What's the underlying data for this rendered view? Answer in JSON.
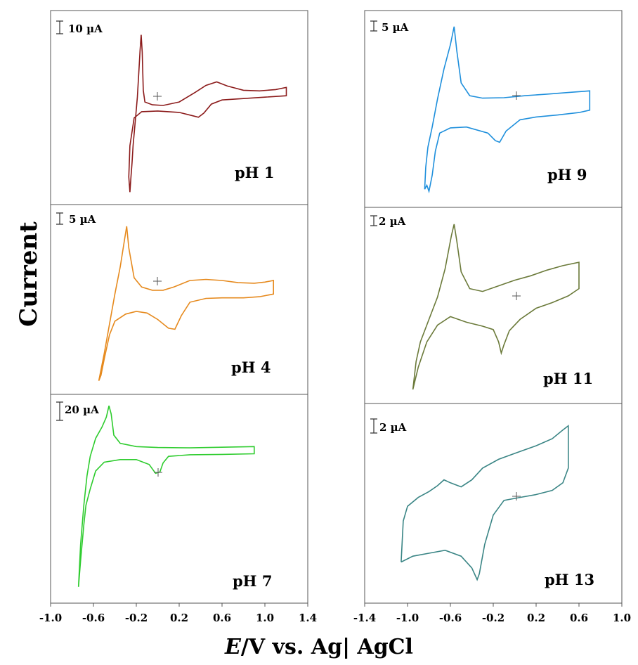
{
  "figure": {
    "ylabel": "Current",
    "xlabel_prefix": "E",
    "xlabel_rest": "/V vs. Ag| AgCl"
  },
  "chart_data": [
    {
      "type": "line",
      "column": "left",
      "label": "pH  1",
      "scale": "10 µA",
      "color": "#8b1a1a",
      "xlim": [
        -1.0,
        1.4
      ],
      "xticks": [
        "-1.0",
        "-0.6",
        "-0.2",
        "0.2",
        "0.6",
        "1.0",
        "1.4"
      ],
      "points": [
        [
          -0.23,
          0.35
        ],
        [
          -0.21,
          0.7
        ],
        [
          -0.19,
          1.05
        ],
        [
          -0.175,
          1.45
        ],
        [
          -0.165,
          1.72
        ],
        [
          -0.155,
          1.95
        ],
        [
          -0.145,
          1.7
        ],
        [
          -0.135,
          1.15
        ],
        [
          -0.12,
          0.98
        ],
        [
          -0.05,
          0.94
        ],
        [
          0.05,
          0.93
        ],
        [
          0.2,
          0.98
        ],
        [
          0.35,
          1.12
        ],
        [
          0.45,
          1.22
        ],
        [
          0.55,
          1.27
        ],
        [
          0.65,
          1.21
        ],
        [
          0.8,
          1.15
        ],
        [
          0.95,
          1.14
        ],
        [
          1.1,
          1.16
        ],
        [
          1.2,
          1.19
        ],
        [
          1.2,
          1.07
        ],
        [
          1.0,
          1.05
        ],
        [
          0.8,
          1.03
        ],
        [
          0.6,
          1.01
        ],
        [
          0.5,
          0.95
        ],
        [
          0.43,
          0.82
        ],
        [
          0.38,
          0.76
        ],
        [
          0.33,
          0.78
        ],
        [
          0.2,
          0.83
        ],
        [
          0.0,
          0.85
        ],
        [
          -0.15,
          0.84
        ],
        [
          -0.22,
          0.75
        ],
        [
          -0.26,
          0.35
        ],
        [
          -0.27,
          -0.1
        ],
        [
          -0.26,
          -0.32
        ],
        [
          -0.25,
          -0.1
        ],
        [
          -0.24,
          0.1
        ],
        [
          -0.23,
          0.35
        ]
      ]
    },
    {
      "type": "line",
      "column": "left",
      "label": "pH  4",
      "scale": "5 µA",
      "color": "#e68a1e",
      "xlim": [
        -1.0,
        1.4
      ],
      "xticks": [
        "-1.0",
        "-0.6",
        "-0.2",
        "0.2",
        "0.6",
        "1.0",
        "1.4"
      ],
      "points": [
        [
          -0.55,
          -0.35
        ],
        [
          -0.5,
          0.15
        ],
        [
          -0.45,
          0.7
        ],
        [
          -0.4,
          1.25
        ],
        [
          -0.35,
          1.75
        ],
        [
          -0.31,
          2.25
        ],
        [
          -0.29,
          2.5
        ],
        [
          -0.27,
          2.1
        ],
        [
          -0.22,
          1.55
        ],
        [
          -0.15,
          1.38
        ],
        [
          -0.05,
          1.32
        ],
        [
          0.05,
          1.32
        ],
        [
          0.15,
          1.38
        ],
        [
          0.3,
          1.5
        ],
        [
          0.45,
          1.52
        ],
        [
          0.6,
          1.5
        ],
        [
          0.75,
          1.46
        ],
        [
          0.9,
          1.45
        ],
        [
          1.0,
          1.47
        ],
        [
          1.08,
          1.5
        ],
        [
          1.08,
          1.25
        ],
        [
          0.95,
          1.2
        ],
        [
          0.8,
          1.18
        ],
        [
          0.6,
          1.18
        ],
        [
          0.45,
          1.17
        ],
        [
          0.3,
          1.1
        ],
        [
          0.22,
          0.85
        ],
        [
          0.16,
          0.6
        ],
        [
          0.1,
          0.62
        ],
        [
          0.0,
          0.78
        ],
        [
          -0.1,
          0.9
        ],
        [
          -0.2,
          0.93
        ],
        [
          -0.3,
          0.88
        ],
        [
          -0.4,
          0.75
        ],
        [
          -0.45,
          0.5
        ],
        [
          -0.5,
          0.05
        ],
        [
          -0.53,
          -0.25
        ],
        [
          -0.55,
          -0.35
        ]
      ]
    },
    {
      "type": "line",
      "column": "left",
      "label": "pH  7",
      "scale": "20 µA",
      "color": "#2ecc2e",
      "xlim": [
        -1.0,
        1.4
      ],
      "xticks": [
        "-1.0",
        "-0.6",
        "-0.2",
        "0.2",
        "0.6",
        "1.0",
        "1.4"
      ],
      "points": [
        [
          -0.74,
          -3.1
        ],
        [
          -0.72,
          -1.8
        ],
        [
          -0.69,
          -0.6
        ],
        [
          -0.66,
          0.3
        ],
        [
          -0.63,
          0.9
        ],
        [
          -0.58,
          1.45
        ],
        [
          -0.52,
          1.8
        ],
        [
          -0.48,
          2.1
        ],
        [
          -0.455,
          2.45
        ],
        [
          -0.435,
          2.2
        ],
        [
          -0.41,
          1.55
        ],
        [
          -0.35,
          1.3
        ],
        [
          -0.2,
          1.2
        ],
        [
          0.0,
          1.17
        ],
        [
          0.3,
          1.16
        ],
        [
          0.6,
          1.18
        ],
        [
          0.9,
          1.2
        ],
        [
          0.9,
          0.98
        ],
        [
          0.6,
          0.96
        ],
        [
          0.3,
          0.95
        ],
        [
          0.1,
          0.9
        ],
        [
          0.05,
          0.7
        ],
        [
          0.02,
          0.42
        ],
        [
          -0.02,
          0.38
        ],
        [
          -0.08,
          0.65
        ],
        [
          -0.2,
          0.8
        ],
        [
          -0.35,
          0.8
        ],
        [
          -0.5,
          0.72
        ],
        [
          -0.58,
          0.45
        ],
        [
          -0.63,
          -0.1
        ],
        [
          -0.67,
          -0.6
        ],
        [
          -0.69,
          -1.2
        ],
        [
          -0.72,
          -2.3
        ],
        [
          -0.74,
          -3.1
        ]
      ]
    },
    {
      "type": "line",
      "column": "right",
      "label": "pH   9",
      "scale": "5 µA",
      "color": "#1e8fdc",
      "xlim": [
        -1.4,
        1.0
      ],
      "xticks": [
        "-1.4",
        "-1.0",
        "-0.6",
        "-0.2",
        "0.2",
        "0.6",
        "1.0"
      ],
      "points": [
        [
          -0.84,
          -1.05
        ],
        [
          -0.83,
          -0.5
        ],
        [
          -0.81,
          0.0
        ],
        [
          -0.77,
          0.5
        ],
        [
          -0.72,
          1.2
        ],
        [
          -0.66,
          1.95
        ],
        [
          -0.6,
          2.55
        ],
        [
          -0.565,
          3.0
        ],
        [
          -0.54,
          2.4
        ],
        [
          -0.5,
          1.6
        ],
        [
          -0.42,
          1.28
        ],
        [
          -0.3,
          1.22
        ],
        [
          -0.1,
          1.23
        ],
        [
          0.1,
          1.28
        ],
        [
          0.3,
          1.32
        ],
        [
          0.5,
          1.36
        ],
        [
          0.7,
          1.4
        ],
        [
          0.7,
          0.92
        ],
        [
          0.6,
          0.86
        ],
        [
          0.4,
          0.8
        ],
        [
          0.2,
          0.75
        ],
        [
          0.05,
          0.68
        ],
        [
          -0.08,
          0.4
        ],
        [
          -0.14,
          0.12
        ],
        [
          -0.18,
          0.16
        ],
        [
          -0.25,
          0.35
        ],
        [
          -0.45,
          0.5
        ],
        [
          -0.6,
          0.48
        ],
        [
          -0.7,
          0.35
        ],
        [
          -0.74,
          -0.1
        ],
        [
          -0.77,
          -0.7
        ],
        [
          -0.8,
          -1.1
        ],
        [
          -0.82,
          -0.95
        ],
        [
          -0.84,
          -1.05
        ]
      ]
    },
    {
      "type": "line",
      "column": "right",
      "label": "pH  11",
      "scale": "2 µA",
      "color": "#6b7a3a",
      "xlim": [
        -1.4,
        1.0
      ],
      "xticks": [
        "-1.4",
        "-1.0",
        "-0.6",
        "-0.2",
        "0.2",
        "0.6",
        "1.0"
      ],
      "points": [
        [
          -0.95,
          -0.85
        ],
        [
          -0.92,
          -0.35
        ],
        [
          -0.88,
          0.0
        ],
        [
          -0.8,
          0.4
        ],
        [
          -0.72,
          0.8
        ],
        [
          -0.65,
          1.3
        ],
        [
          -0.59,
          1.9
        ],
        [
          -0.565,
          2.1
        ],
        [
          -0.54,
          1.8
        ],
        [
          -0.5,
          1.25
        ],
        [
          -0.42,
          0.95
        ],
        [
          -0.3,
          0.9
        ],
        [
          -0.15,
          1.0
        ],
        [
          0.0,
          1.1
        ],
        [
          0.15,
          1.18
        ],
        [
          0.3,
          1.28
        ],
        [
          0.45,
          1.36
        ],
        [
          0.6,
          1.42
        ],
        [
          0.6,
          0.95
        ],
        [
          0.5,
          0.82
        ],
        [
          0.35,
          0.7
        ],
        [
          0.2,
          0.6
        ],
        [
          0.05,
          0.4
        ],
        [
          -0.05,
          0.2
        ],
        [
          -0.1,
          -0.05
        ],
        [
          -0.125,
          -0.2
        ],
        [
          -0.15,
          0.0
        ],
        [
          -0.2,
          0.22
        ],
        [
          -0.3,
          0.28
        ],
        [
          -0.45,
          0.35
        ],
        [
          -0.6,
          0.45
        ],
        [
          -0.72,
          0.3
        ],
        [
          -0.82,
          0.0
        ],
        [
          -0.9,
          -0.45
        ],
        [
          -0.95,
          -0.85
        ]
      ]
    },
    {
      "type": "line",
      "column": "right",
      "label": "pH  13",
      "scale": "2 µA",
      "color": "#3a8585",
      "xlim": [
        -1.4,
        1.0
      ],
      "xticks": [
        "-1.4",
        "-1.0",
        "-0.6",
        "-0.2",
        "0.2",
        "0.6",
        "1.0"
      ],
      "points": [
        [
          -1.06,
          -0.3
        ],
        [
          -1.04,
          0.4
        ],
        [
          -1.0,
          0.65
        ],
        [
          -0.9,
          0.8
        ],
        [
          -0.8,
          0.9
        ],
        [
          -0.72,
          1.0
        ],
        [
          -0.66,
          1.1
        ],
        [
          -0.6,
          1.05
        ],
        [
          -0.5,
          0.98
        ],
        [
          -0.4,
          1.1
        ],
        [
          -0.3,
          1.3
        ],
        [
          -0.15,
          1.45
        ],
        [
          0.0,
          1.55
        ],
        [
          0.2,
          1.68
        ],
        [
          0.35,
          1.8
        ],
        [
          0.45,
          1.95
        ],
        [
          0.5,
          2.02
        ],
        [
          0.5,
          1.3
        ],
        [
          0.45,
          1.05
        ],
        [
          0.35,
          0.92
        ],
        [
          0.2,
          0.85
        ],
        [
          0.05,
          0.8
        ],
        [
          -0.1,
          0.75
        ],
        [
          -0.2,
          0.5
        ],
        [
          -0.28,
          0.0
        ],
        [
          -0.33,
          -0.5
        ],
        [
          -0.35,
          -0.6
        ],
        [
          -0.4,
          -0.4
        ],
        [
          -0.5,
          -0.2
        ],
        [
          -0.65,
          -0.1
        ],
        [
          -0.8,
          -0.15
        ],
        [
          -0.95,
          -0.2
        ],
        [
          -1.06,
          -0.3
        ]
      ]
    }
  ]
}
